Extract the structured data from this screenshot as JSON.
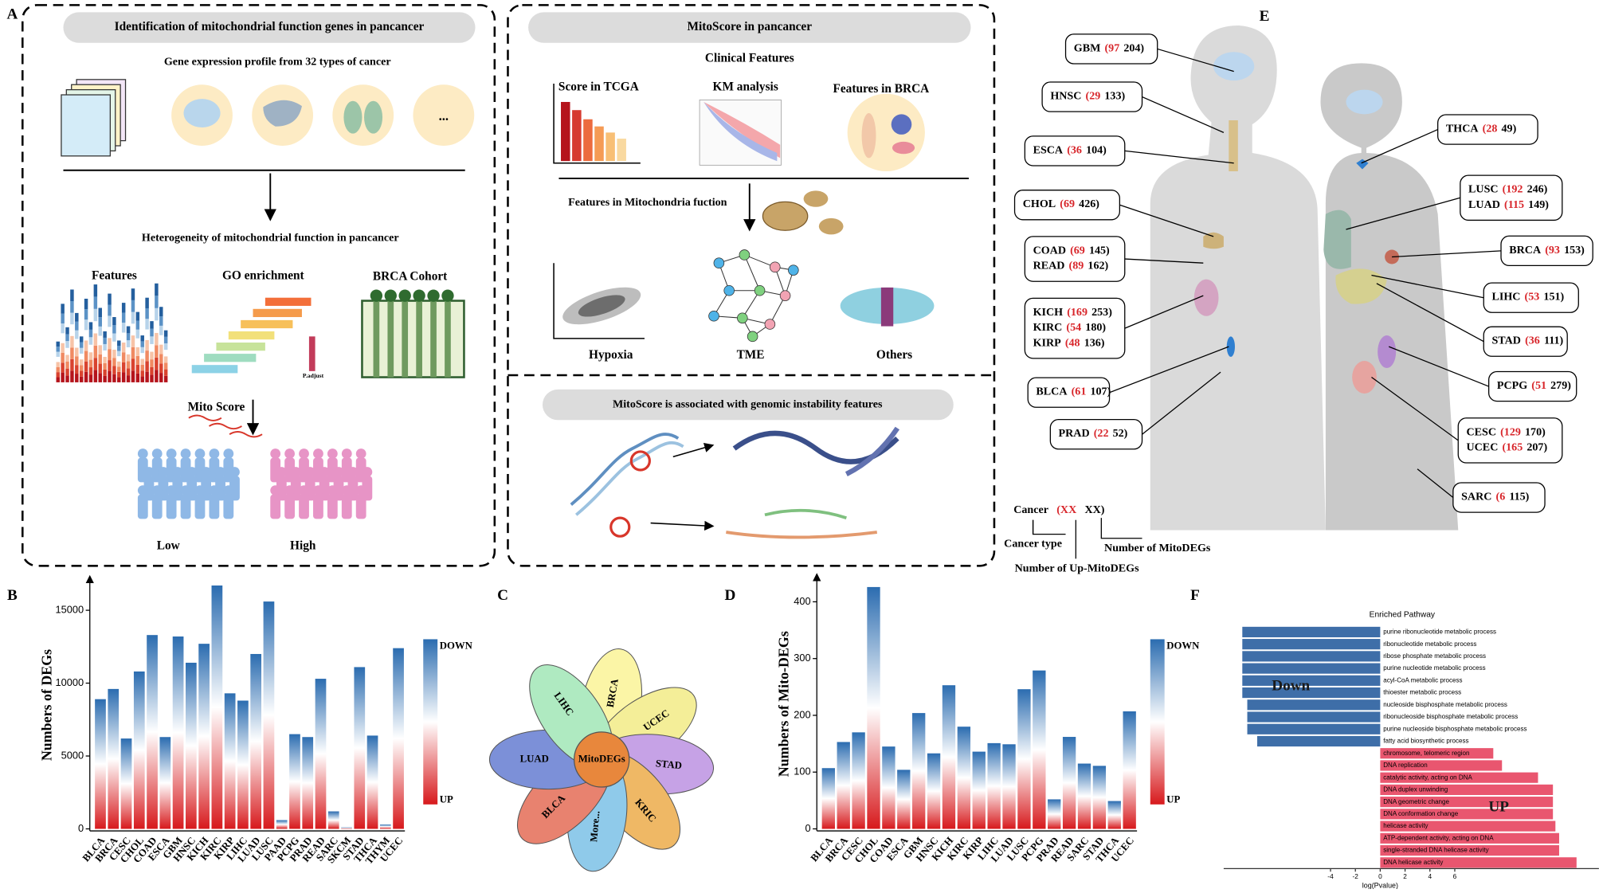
{
  "panel_labels": [
    "A",
    "B",
    "C",
    "D",
    "E",
    "F"
  ],
  "panel_a": {
    "workflow_1": {
      "title": "Identification of  mitochondrial function genes in pancancer",
      "subtitle": "Gene expression profile from 32 types of cancer",
      "ellipsis": "...",
      "heterogeneity": "Heterogeneity of mitochondrial function in pancancer",
      "features": "Features",
      "go": "GO enrichment",
      "cohort": "BRCA  Cohort",
      "padjust": "P.adjust",
      "mito_score": "Mito Score",
      "low": "Low",
      "high": "High"
    },
    "workflow_2": {
      "title": "MitoScore in pancancer",
      "clinical": "Clinical Features",
      "score_tcga": "Score in TCGA",
      "km": "KM analysis",
      "features_brca": "Features in BRCA",
      "mito_features": "Features in Mitochondria fuction",
      "hypoxia": "Hypoxia",
      "tme": "TME",
      "others": "Others"
    },
    "workflow_3": {
      "title": "MitoScore is associated with genomic instability features"
    }
  },
  "panel_c": {
    "center": "MitoDEGs",
    "petals": [
      "BRCA",
      "UCEC",
      "STAD",
      "KRIC",
      "More...",
      "BLCA",
      "LUAD",
      "LIHC"
    ]
  },
  "panel_e": {
    "callouts": [
      {
        "lines": [
          {
            "name": "GBM",
            "up": "(97",
            "total": "204)"
          }
        ]
      },
      {
        "lines": [
          {
            "name": "HNSC",
            "up": "(29",
            "total": "133)"
          }
        ]
      },
      {
        "lines": [
          {
            "name": "ESCA",
            "up": "(36",
            "total": "104)"
          }
        ]
      },
      {
        "lines": [
          {
            "name": "CHOL",
            "up": "(69",
            "total": "426)"
          }
        ]
      },
      {
        "lines": [
          {
            "name": "COAD",
            "up": "(69",
            "total": "145)"
          },
          {
            "name": "READ",
            "up": "(89",
            "total": "162)"
          }
        ]
      },
      {
        "lines": [
          {
            "name": "KICH",
            "up": "(169",
            "total": "253)"
          },
          {
            "name": "KIRC",
            "up": "(54",
            "total": "180)"
          },
          {
            "name": "KIRP",
            "up": "(48",
            "total": "136)"
          }
        ]
      },
      {
        "lines": [
          {
            "name": "BLCA",
            "up": "(61",
            "total": "107)"
          }
        ]
      },
      {
        "lines": [
          {
            "name": "PRAD",
            "up": "(22",
            "total": "52)"
          }
        ]
      },
      {
        "lines": [
          {
            "name": "THCA",
            "up": "(28",
            "total": "49)"
          }
        ]
      },
      {
        "lines": [
          {
            "name": "LUSC",
            "up": "(192",
            "total": "246)"
          },
          {
            "name": "LUAD",
            "up": "(115",
            "total": "149)"
          }
        ]
      },
      {
        "lines": [
          {
            "name": "BRCA",
            "up": "(93",
            "total": "153)"
          }
        ]
      },
      {
        "lines": [
          {
            "name": "LIHC",
            "up": "(53",
            "total": "151)"
          }
        ]
      },
      {
        "lines": [
          {
            "name": "STAD",
            "up": "(36",
            "total": "111)"
          }
        ]
      },
      {
        "lines": [
          {
            "name": "PCPG",
            "up": "(51",
            "total": "279)"
          }
        ]
      },
      {
        "lines": [
          {
            "name": "CESC",
            "up": "(129",
            "total": "170)"
          },
          {
            "name": "UCEC",
            "up": "(165",
            "total": "207)"
          }
        ]
      },
      {
        "lines": [
          {
            "name": "SARC",
            "up": "(6",
            "total": "115)"
          }
        ]
      }
    ],
    "legend": {
      "name": "Cancer",
      "up": "(XX",
      "total": "XX)",
      "cancer_type": "Cancer type",
      "up_label": "Number of Up-MitoDEGs",
      "total_label": "Number of MitoDEGs"
    }
  },
  "chart_data": [
    {
      "type": "bar",
      "ylabel": "Numbers of DEGs",
      "categories": [
        "BLCA",
        "BRCA",
        "CESC",
        "CHOL",
        "COAD",
        "ESCA",
        "GBM",
        "HNSC",
        "KICH",
        "KIRC",
        "KIRP",
        "LIHC",
        "LUAD",
        "LUSC",
        "PAAD",
        "PCPG",
        "PRAD",
        "READ",
        "SARC",
        "SKCM",
        "STAD",
        "THCA",
        "THYM",
        "UCEC"
      ],
      "values": [
        8900,
        9600,
        6200,
        10800,
        13300,
        6300,
        13200,
        11400,
        12700,
        16700,
        9300,
        8800,
        12000,
        15600,
        600,
        6500,
        6300,
        10300,
        1200,
        100,
        11100,
        6400,
        300,
        12400
      ],
      "ylim": [
        0,
        17000
      ],
      "yticks": [
        0,
        5000,
        10000,
        15000
      ],
      "colorbar_labels": [
        "DOWN",
        "UP"
      ],
      "colorbar_colors": [
        "#2b6cb0",
        "#ffffff",
        "#d7191c"
      ]
    },
    {
      "type": "bar",
      "ylabel": "Numbers of Mito-DEGs",
      "categories": [
        "BLCA",
        "BRCA",
        "CESC",
        "CHOL",
        "COAD",
        "ESCA",
        "GBM",
        "HNSC",
        "KICH",
        "KIRC",
        "KIRP",
        "LIHC",
        "LUAD",
        "LUSC",
        "PCPG",
        "PRAD",
        "READ",
        "SARC",
        "STAD",
        "THCA",
        "UCEC"
      ],
      "values": [
        107,
        153,
        170,
        426,
        145,
        104,
        204,
        133,
        253,
        180,
        136,
        151,
        149,
        246,
        279,
        52,
        162,
        115,
        111,
        49,
        207
      ],
      "ylim": [
        0,
        440
      ],
      "yticks": [
        0,
        100,
        200,
        300,
        400
      ],
      "colorbar_labels": [
        "DOWN",
        "UP"
      ],
      "colorbar_colors": [
        "#2b6cb0",
        "#ffffff",
        "#d7191c"
      ]
    },
    {
      "type": "bar",
      "orientation": "horizontal",
      "title": "Enriched Pathway",
      "xlabel": "log(Pvalue)",
      "categories": [
        "purine ribonucleotide metabolic process",
        "ribonucleotide metabolic process",
        "ribose phosphate metabolic process",
        "purine nucleotide metabolic process",
        "acyl-CoA metabolic process",
        "thioester metabolic process",
        "nucleoside bisphosphate metabolic process",
        "ribonucleoside bisphosphate metabolic process",
        "purine nucleoside bisphosphate metabolic process",
        "fatty acid biosynthetic process",
        "chromosome, telomeric region",
        "DNA replication",
        "catalytic activity, acting on DNA",
        "DNA duplex unwinding",
        "DNA geometric change",
        "DNA conformation change",
        "helicase activity",
        "ATP-dependent activity, acting on DNA",
        "single-stranded DNA helicase activity",
        "DNA helicase activity"
      ],
      "series": [
        {
          "name": "Down",
          "color": "#3e6ea8",
          "values": [
            -11.1,
            -11.1,
            -11.1,
            -11.1,
            -11.1,
            -11.1,
            -10.7,
            -10.7,
            -10.7,
            -9.9,
            null,
            null,
            null,
            null,
            null,
            null,
            null,
            null,
            null,
            null
          ]
        },
        {
          "name": "UP",
          "color": "#e9566f",
          "values": [
            null,
            null,
            null,
            null,
            null,
            null,
            null,
            null,
            null,
            null,
            9.1,
            9.8,
            12.7,
            13.9,
            13.9,
            13.9,
            14.1,
            14.4,
            14.4,
            15.8
          ]
        }
      ],
      "xlim": [
        -12.6,
        17.6
      ],
      "xticks": [
        -4,
        -2,
        0,
        2,
        4,
        6
      ]
    }
  ]
}
